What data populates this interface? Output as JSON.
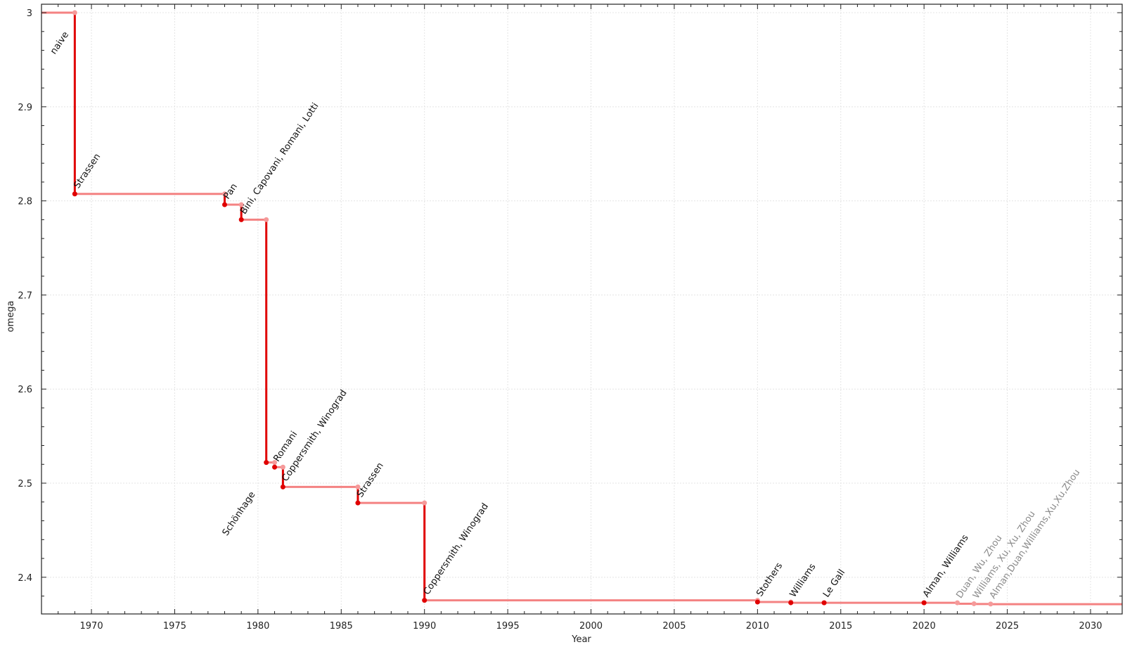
{
  "chart_data": {
    "type": "line",
    "step": true,
    "title": "",
    "xlabel": "Year",
    "ylabel": "omega",
    "xlim": [
      1967,
      2031.9
    ],
    "ylim": [
      2.361,
      3.009
    ],
    "xticks": [
      1970,
      1975,
      1980,
      1985,
      1990,
      1995,
      2000,
      2005,
      2010,
      2015,
      2020,
      2025,
      2030
    ],
    "yticks": [
      2.4,
      2.5,
      2.6,
      2.7,
      2.8,
      2.9,
      3
    ],
    "ytick_labels": [
      "2.4",
      "2.5",
      "2.6",
      "2.7",
      "2.8",
      "2.9",
      "3"
    ],
    "grid": true,
    "colors": {
      "record_line": "#e00000",
      "step_line": "#f48282",
      "record_marker": "#e00000",
      "step_marker": "#f59a9a",
      "label": "#111111",
      "provisional_label": "#8a8a8a"
    },
    "records": [
      {
        "label": "naive",
        "year": null,
        "omega": 3.0,
        "provisional": false
      },
      {
        "label": "Strassen",
        "year": 1969,
        "omega": 2.8074,
        "provisional": false
      },
      {
        "label": "Pan",
        "year": 1978,
        "omega": 2.796,
        "provisional": false
      },
      {
        "label": "Bini, Capovani, Romani, Lotti",
        "year": 1979,
        "omega": 2.78,
        "provisional": false
      },
      {
        "label": "Schönhage",
        "year": 1980.5,
        "omega": 2.522,
        "provisional": false
      },
      {
        "label": "Romani",
        "year": 1981,
        "omega": 2.517,
        "provisional": false
      },
      {
        "label": "Coppersmith, Winograd",
        "year": 1981.5,
        "omega": 2.496,
        "provisional": false
      },
      {
        "label": "Strassen",
        "year": 1986,
        "omega": 2.479,
        "provisional": false
      },
      {
        "label": "Coppersmith, Winograd",
        "year": 1990,
        "omega": 2.3755,
        "provisional": false
      },
      {
        "label": "Stothers",
        "year": 2010,
        "omega": 2.3737,
        "provisional": false
      },
      {
        "label": "Williams",
        "year": 2012,
        "omega": 2.3729,
        "provisional": false
      },
      {
        "label": "Le Gall",
        "year": 2014,
        "omega": 2.37286,
        "provisional": false
      },
      {
        "label": "Alman, Williams",
        "year": 2020,
        "omega": 2.37286,
        "provisional": false
      },
      {
        "label": "Duan, Wu, Zhou",
        "year": 2022,
        "omega": 2.371866,
        "provisional": true
      },
      {
        "label": "Williams, Xu, Xu, Zhou",
        "year": 2023,
        "omega": 2.371552,
        "provisional": true
      },
      {
        "label": "Alman,Duan,Williams,Xu,Xu,Zhou",
        "year": 2024,
        "omega": 2.371339,
        "provisional": true
      }
    ]
  }
}
